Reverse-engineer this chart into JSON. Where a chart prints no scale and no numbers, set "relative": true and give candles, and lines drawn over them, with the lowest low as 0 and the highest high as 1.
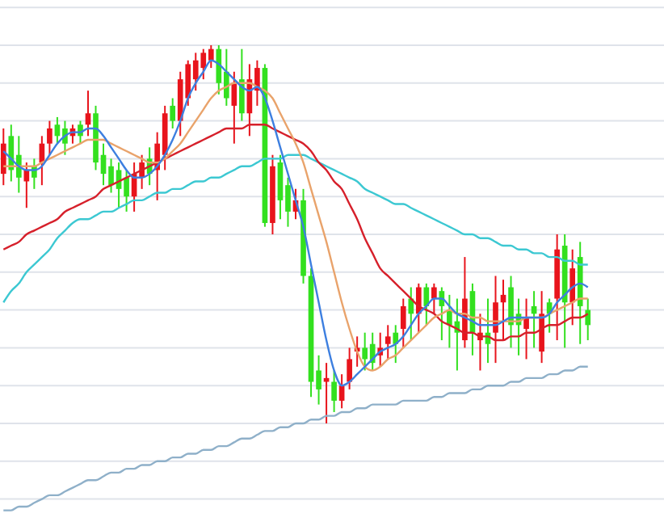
{
  "chart_data": {
    "type": "candlestick",
    "relative": true,
    "grid": true,
    "categories": [
      null,
      null,
      null,
      null,
      null,
      null,
      null,
      null,
      null,
      null,
      null,
      null,
      null,
      null,
      null,
      null,
      null,
      null,
      null,
      null,
      null,
      null,
      null,
      null,
      null,
      null,
      null,
      null,
      null,
      null,
      null,
      null,
      null,
      null,
      null,
      null,
      null,
      null,
      null,
      null,
      null,
      null,
      null,
      null,
      null,
      null,
      null,
      null,
      null,
      null,
      null,
      null,
      null,
      null,
      null,
      null,
      null,
      null,
      null,
      null,
      null,
      null,
      null,
      null,
      null,
      null,
      null,
      null,
      null,
      null,
      null,
      null,
      null,
      null,
      null,
      null,
      null
    ],
    "ohlc": [
      [
        0.66,
        0.78,
        0.63,
        0.74
      ],
      [
        0.76,
        0.79,
        0.64,
        0.67
      ],
      [
        0.71,
        0.76,
        0.61,
        0.65
      ],
      [
        0.64,
        0.69,
        0.57,
        0.67
      ],
      [
        0.68,
        0.7,
        0.62,
        0.65
      ],
      [
        0.69,
        0.76,
        0.63,
        0.74
      ],
      [
        0.74,
        0.8,
        0.71,
        0.78
      ],
      [
        0.79,
        0.81,
        0.74,
        0.76
      ],
      [
        0.78,
        0.8,
        0.71,
        0.74
      ],
      [
        0.76,
        0.79,
        0.74,
        0.78
      ],
      [
        0.79,
        0.8,
        0.74,
        0.76
      ],
      [
        0.79,
        0.88,
        0.76,
        0.82
      ],
      [
        0.82,
        0.84,
        0.67,
        0.69
      ],
      [
        0.71,
        0.74,
        0.63,
        0.66
      ],
      [
        0.68,
        0.7,
        0.61,
        0.63
      ],
      [
        0.67,
        0.69,
        0.57,
        0.62
      ],
      [
        0.65,
        0.67,
        0.56,
        0.6
      ],
      [
        0.6,
        0.69,
        0.56,
        0.66
      ],
      [
        0.65,
        0.71,
        0.62,
        0.69
      ],
      [
        0.7,
        0.73,
        0.63,
        0.66
      ],
      [
        0.67,
        0.77,
        0.59,
        0.74
      ],
      [
        0.71,
        0.84,
        0.67,
        0.82
      ],
      [
        0.84,
        0.86,
        0.78,
        0.8
      ],
      [
        0.8,
        0.93,
        0.76,
        0.91
      ],
      [
        0.86,
        0.96,
        0.84,
        0.95
      ],
      [
        0.91,
        0.98,
        0.88,
        0.96
      ],
      [
        0.94,
        0.99,
        0.91,
        0.98
      ],
      [
        0.96,
        1,
        0.94,
        0.99
      ],
      [
        0.99,
        1,
        0.87,
        0.9
      ],
      [
        0.93,
        0.99,
        0.84,
        0.86
      ],
      [
        0.84,
        0.93,
        0.74,
        0.9
      ],
      [
        0.91,
        0.99,
        0.8,
        0.82
      ],
      [
        0.82,
        0.95,
        0.76,
        0.91
      ],
      [
        0.88,
        0.96,
        0.84,
        0.94
      ],
      [
        0.94,
        0.95,
        0.52,
        0.53
      ],
      [
        0.53,
        0.71,
        0.5,
        0.68
      ],
      [
        0.69,
        0.71,
        0.54,
        0.59
      ],
      [
        0.63,
        0.65,
        0.52,
        0.56
      ],
      [
        0.56,
        0.62,
        0.54,
        0.59
      ],
      [
        0.59,
        0.62,
        0.37,
        0.39
      ],
      [
        0.39,
        0.41,
        0.07,
        0.11
      ],
      [
        0.14,
        0.18,
        0.05,
        0.09
      ],
      [
        0.11,
        0.16,
        0,
        0.12
      ],
      [
        0.11,
        0.14,
        0.03,
        0.06
      ],
      [
        0.06,
        0.13,
        0.04,
        0.1
      ],
      [
        0.11,
        0.2,
        0.09,
        0.17
      ],
      [
        0.19,
        0.23,
        0.15,
        0.2
      ],
      [
        0.2,
        0.24,
        0.14,
        0.17
      ],
      [
        0.21,
        0.24,
        0.14,
        0.16
      ],
      [
        0.18,
        0.24,
        0.15,
        0.2
      ],
      [
        0.21,
        0.26,
        0.17,
        0.23
      ],
      [
        0.24,
        0.26,
        0.16,
        0.21
      ],
      [
        0.25,
        0.33,
        0.2,
        0.31
      ],
      [
        0.33,
        0.36,
        0.22,
        0.29
      ],
      [
        0.29,
        0.37,
        0.24,
        0.36
      ],
      [
        0.36,
        0.37,
        0.26,
        0.31
      ],
      [
        0.33,
        0.37,
        0.29,
        0.36
      ],
      [
        0.35,
        0.36,
        0.22,
        0.31
      ],
      [
        0.3,
        0.34,
        0.2,
        0.26
      ],
      [
        0.27,
        0.33,
        0.14,
        0.24
      ],
      [
        0.22,
        0.44,
        0.2,
        0.33
      ],
      [
        0.35,
        0.37,
        0.18,
        0.24
      ],
      [
        0.22,
        0.29,
        0.14,
        0.24
      ],
      [
        0.24,
        0.33,
        0.16,
        0.21
      ],
      [
        0.24,
        0.39,
        0.16,
        0.32
      ],
      [
        0.32,
        0.38,
        0.22,
        0.34
      ],
      [
        0.36,
        0.39,
        0.2,
        0.26
      ],
      [
        0.29,
        0.33,
        0.18,
        0.26
      ],
      [
        0.25,
        0.33,
        0.17,
        0.28
      ],
      [
        0.31,
        0.35,
        0.2,
        0.29
      ],
      [
        0.19,
        0.35,
        0.16,
        0.29
      ],
      [
        0.32,
        0.33,
        0.24,
        0.29
      ],
      [
        0.33,
        0.5,
        0.22,
        0.46
      ],
      [
        0.47,
        0.5,
        0.2,
        0.32
      ],
      [
        0.32,
        0.46,
        0.26,
        0.41
      ],
      [
        0.44,
        0.48,
        0.21,
        0.31
      ],
      [
        0.3,
        0.33,
        0.22,
        0.26
      ]
    ],
    "colors": [
      "#e8141c",
      "#33e01f",
      "#33e01f",
      "#e8141c",
      "#33e01f",
      "#e8141c",
      "#e8141c",
      "#33e01f",
      "#33e01f",
      "#e8141c",
      "#33e01f",
      "#e8141c",
      "#33e01f",
      "#33e01f",
      "#33e01f",
      "#33e01f",
      "#33e01f",
      "#e8141c",
      "#e8141c",
      "#33e01f",
      "#e8141c",
      "#e8141c",
      "#33e01f",
      "#e8141c",
      "#e8141c",
      "#e8141c",
      "#e8141c",
      "#e8141c",
      "#33e01f",
      "#33e01f",
      "#e8141c",
      "#33e01f",
      "#e8141c",
      "#e8141c",
      "#33e01f",
      "#e8141c",
      "#33e01f",
      "#33e01f",
      "#e8141c",
      "#33e01f",
      "#33e01f",
      "#33e01f",
      "#e8141c",
      "#33e01f",
      "#e8141c",
      "#e8141c",
      "#e8141c",
      "#33e01f",
      "#33e01f",
      "#e8141c",
      "#e8141c",
      "#33e01f",
      "#e8141c",
      "#33e01f",
      "#e8141c",
      "#33e01f",
      "#e8141c",
      "#33e01f",
      "#33e01f",
      "#33e01f",
      "#e8141c",
      "#33e01f",
      "#e8141c",
      "#33e01f",
      "#e8141c",
      "#e8141c",
      "#33e01f",
      "#33e01f",
      "#e8141c",
      "#33e01f",
      "#e8141c",
      "#33e01f",
      "#e8141c",
      "#33e01f",
      "#e8141c",
      "#33e01f",
      "#33e01f"
    ],
    "series": [
      {
        "type": "line",
        "color": "#8fb0c9",
        "values": [
          -0.23,
          -0.23,
          -0.22,
          -0.22,
          -0.21,
          -0.2,
          -0.19,
          -0.19,
          -0.18,
          -0.17,
          -0.16,
          -0.15,
          -0.15,
          -0.14,
          -0.13,
          -0.13,
          -0.12,
          -0.12,
          -0.11,
          -0.11,
          -0.1,
          -0.1,
          -0.09,
          -0.09,
          -0.08,
          -0.08,
          -0.07,
          -0.07,
          -0.06,
          -0.06,
          -0.05,
          -0.04,
          -0.04,
          -0.03,
          -0.02,
          -0.02,
          -0.01,
          -0.01,
          0,
          0,
          0.01,
          0.01,
          0.02,
          0.02,
          0.03,
          0.03,
          0.04,
          0.04,
          0.05,
          0.05,
          0.05,
          0.05,
          0.06,
          0.06,
          0.06,
          0.06,
          0.07,
          0.07,
          0.08,
          0.08,
          0.08,
          0.09,
          0.09,
          0.1,
          0.1,
          0.1,
          0.11,
          0.11,
          0.12,
          0.12,
          0.12,
          0.13,
          0.13,
          0.14,
          0.14,
          0.15,
          0.15
        ]
      },
      {
        "type": "line",
        "color": "#3cc8d2",
        "values": [
          0.32,
          0.35,
          0.37,
          0.4,
          0.42,
          0.44,
          0.46,
          0.49,
          0.51,
          0.53,
          0.54,
          0.54,
          0.55,
          0.56,
          0.56,
          0.57,
          0.58,
          0.59,
          0.59,
          0.6,
          0.61,
          0.61,
          0.62,
          0.62,
          0.63,
          0.64,
          0.64,
          0.65,
          0.65,
          0.66,
          0.67,
          0.68,
          0.68,
          0.69,
          0.7,
          0.7,
          0.7,
          0.71,
          0.71,
          0.71,
          0.7,
          0.69,
          0.68,
          0.67,
          0.66,
          0.65,
          0.64,
          0.62,
          0.61,
          0.6,
          0.59,
          0.58,
          0.58,
          0.57,
          0.56,
          0.55,
          0.54,
          0.53,
          0.52,
          0.51,
          0.5,
          0.5,
          0.49,
          0.49,
          0.48,
          0.47,
          0.47,
          0.46,
          0.46,
          0.45,
          0.45,
          0.44,
          0.44,
          0.43,
          0.43,
          0.42,
          0.42
        ]
      },
      {
        "type": "line",
        "color": "#d6202b",
        "values": [
          0.46,
          0.47,
          0.48,
          0.5,
          0.51,
          0.52,
          0.53,
          0.54,
          0.56,
          0.57,
          0.58,
          0.59,
          0.6,
          0.62,
          0.63,
          0.64,
          0.65,
          0.66,
          0.67,
          0.68,
          0.69,
          0.7,
          0.71,
          0.72,
          0.73,
          0.74,
          0.75,
          0.76,
          0.77,
          0.78,
          0.78,
          0.78,
          0.79,
          0.79,
          0.79,
          0.78,
          0.77,
          0.76,
          0.75,
          0.74,
          0.72,
          0.69,
          0.67,
          0.64,
          0.62,
          0.58,
          0.54,
          0.49,
          0.45,
          0.41,
          0.39,
          0.37,
          0.35,
          0.33,
          0.31,
          0.3,
          0.29,
          0.27,
          0.26,
          0.25,
          0.24,
          0.24,
          0.23,
          0.23,
          0.22,
          0.22,
          0.23,
          0.23,
          0.24,
          0.24,
          0.25,
          0.26,
          0.26,
          0.27,
          0.28,
          0.28,
          0.29
        ]
      },
      {
        "type": "line",
        "color": "#e9a36b",
        "values": [
          0.68,
          0.68,
          0.68,
          0.68,
          0.68,
          0.69,
          0.7,
          0.71,
          0.72,
          0.73,
          0.74,
          0.75,
          0.75,
          0.75,
          0.74,
          0.73,
          0.72,
          0.71,
          0.7,
          0.69,
          0.69,
          0.7,
          0.72,
          0.74,
          0.77,
          0.8,
          0.83,
          0.86,
          0.88,
          0.89,
          0.9,
          0.9,
          0.9,
          0.89,
          0.88,
          0.86,
          0.82,
          0.78,
          0.74,
          0.69,
          0.62,
          0.55,
          0.48,
          0.4,
          0.32,
          0.25,
          0.19,
          0.15,
          0.14,
          0.15,
          0.17,
          0.18,
          0.2,
          0.22,
          0.24,
          0.26,
          0.28,
          0.29,
          0.3,
          0.29,
          0.29,
          0.28,
          0.28,
          0.27,
          0.27,
          0.27,
          0.27,
          0.27,
          0.28,
          0.28,
          0.28,
          0.29,
          0.3,
          0.31,
          0.32,
          0.33,
          0.33
        ]
      },
      {
        "type": "line",
        "color": "#3d7fe0",
        "values": [
          0.72,
          0.7,
          0.68,
          0.67,
          0.67,
          0.68,
          0.71,
          0.74,
          0.76,
          0.77,
          0.77,
          0.78,
          0.78,
          0.76,
          0.73,
          0.7,
          0.67,
          0.65,
          0.65,
          0.66,
          0.68,
          0.71,
          0.75,
          0.8,
          0.86,
          0.9,
          0.93,
          0.96,
          0.95,
          0.93,
          0.91,
          0.89,
          0.88,
          0.89,
          0.86,
          0.8,
          0.73,
          0.66,
          0.59,
          0.52,
          0.42,
          0.32,
          0.22,
          0.14,
          0.1,
          0.11,
          0.13,
          0.15,
          0.17,
          0.19,
          0.2,
          0.21,
          0.23,
          0.26,
          0.29,
          0.31,
          0.33,
          0.33,
          0.31,
          0.29,
          0.28,
          0.27,
          0.26,
          0.26,
          0.26,
          0.27,
          0.28,
          0.28,
          0.28,
          0.28,
          0.28,
          0.29,
          0.32,
          0.34,
          0.36,
          0.37,
          0.36
        ]
      }
    ]
  }
}
